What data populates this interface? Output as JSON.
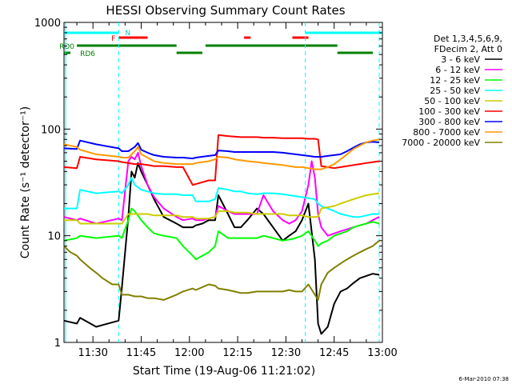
{
  "chart_data": {
    "type": "line",
    "title": "HESSI Observing Summary Count Rates",
    "xlabel": "Start Time (19-Aug-06 11:21:02)",
    "ylabel": "Count Rate (s⁻¹ detector⁻¹)",
    "x_unit": "minutes after 11:21:02",
    "xlim": [
      0,
      99
    ],
    "ylim": [
      1,
      1000
    ],
    "yscale": "log",
    "x_ticks": [
      "11:30",
      "11:45",
      "12:00",
      "12:15",
      "12:30",
      "12:45",
      "13:00"
    ],
    "x_tick_values": [
      9,
      24,
      39,
      54,
      69,
      84,
      99
    ],
    "y_ticks": [
      "1",
      "10",
      "100",
      "1000"
    ],
    "y_tick_values": [
      1,
      10,
      100,
      1000
    ],
    "legend_position": "right",
    "legend_header": [
      "Det 1,3,4,5,6,9,",
      "FDecim 2, Att 0"
    ],
    "series": [
      {
        "name": "3 - 6 keV",
        "color": "#000000",
        "x": [
          0,
          4,
          5,
          10,
          17,
          18,
          20,
          21,
          22,
          23,
          24,
          26,
          28,
          31,
          35,
          37,
          40,
          41,
          43,
          45,
          47,
          48,
          51,
          53,
          55,
          57,
          60,
          62,
          65,
          68,
          70,
          72,
          74,
          76,
          78,
          79,
          80,
          82,
          84,
          86,
          88,
          90,
          92,
          94,
          96,
          98
        ],
        "y": [
          1.6,
          1.5,
          1.7,
          1.4,
          1.6,
          3.3,
          15,
          40,
          35,
          48,
          40,
          30,
          22,
          15,
          13,
          12,
          12,
          12.5,
          13,
          14,
          14,
          24,
          16,
          12,
          12,
          14,
          18,
          16,
          12,
          9,
          10,
          11,
          14,
          20,
          6,
          1.5,
          1.2,
          1.4,
          2.3,
          3,
          3.2,
          3.6,
          4,
          4.2,
          4.4,
          4.3
        ]
      },
      {
        "name": "6 - 12 keV",
        "color": "#ff00ff",
        "x": [
          0,
          4,
          5,
          10,
          17,
          18,
          20,
          21,
          22,
          23,
          24,
          26,
          28,
          31,
          35,
          37,
          40,
          41,
          43,
          45,
          47,
          48,
          51,
          53,
          55,
          57,
          60,
          62,
          65,
          68,
          70,
          72,
          74,
          76,
          77,
          78,
          79,
          80,
          82,
          84,
          86,
          88,
          90,
          92,
          94,
          96,
          98
        ],
        "y": [
          15,
          14,
          14.5,
          13,
          14.5,
          14,
          50,
          55,
          52,
          60,
          45,
          30,
          23,
          18,
          15,
          14,
          14.5,
          14,
          14,
          14.5,
          15,
          19,
          17,
          16,
          16,
          16,
          16,
          24,
          17,
          14,
          13,
          14,
          17,
          30,
          50,
          35,
          16,
          12,
          10,
          10.5,
          11,
          11.5,
          12,
          12.5,
          13,
          14,
          15
        ]
      },
      {
        "name": "12 - 25 keV",
        "color": "#00ff00",
        "x": [
          0,
          4,
          5,
          10,
          17,
          18,
          20,
          21,
          22,
          24,
          26,
          28,
          31,
          35,
          37,
          40,
          41,
          45,
          47,
          48,
          51,
          53,
          55,
          57,
          60,
          62,
          65,
          68,
          70,
          72,
          74,
          76,
          78,
          79,
          80,
          82,
          84,
          86,
          88,
          90,
          92,
          94,
          96,
          98
        ],
        "y": [
          9,
          9.5,
          10,
          9.5,
          10,
          9.5,
          14,
          18,
          17,
          14,
          12,
          10.5,
          10,
          9.5,
          8,
          6.5,
          6,
          7,
          8,
          11,
          9.5,
          9.5,
          9.5,
          9.5,
          9.5,
          10,
          9.5,
          9,
          9.2,
          9.5,
          10,
          11,
          9,
          8,
          8.5,
          9,
          10,
          10.5,
          11,
          12,
          12.5,
          13,
          13.5,
          13
        ]
      },
      {
        "name": "25 - 50 keV",
        "color": "#00ffff",
        "x": [
          0,
          4,
          5,
          10,
          17,
          18,
          20,
          21,
          22,
          24,
          26,
          28,
          31,
          35,
          37,
          40,
          41,
          45,
          47,
          48,
          51,
          53,
          55,
          57,
          60,
          62,
          65,
          68,
          70,
          72,
          74,
          76,
          78,
          79,
          80,
          82,
          84,
          86,
          88,
          90,
          92,
          94,
          96,
          98
        ],
        "y": [
          18,
          18,
          27,
          25,
          26,
          25,
          30,
          35,
          30,
          27,
          26,
          25,
          24.5,
          24.5,
          24,
          24,
          21,
          21,
          22,
          28,
          27,
          26,
          26,
          25,
          24.5,
          25,
          25,
          24.5,
          24,
          23.5,
          23,
          22.5,
          22,
          20,
          19,
          18,
          17,
          16,
          15.5,
          15,
          15,
          15.5,
          16,
          16
        ]
      },
      {
        "name": "50 - 100 keV",
        "color": "#cccc00",
        "x": [
          0,
          4,
          5,
          10,
          17,
          18,
          20,
          22,
          24,
          26,
          28,
          31,
          35,
          37,
          40,
          41,
          45,
          47,
          48,
          51,
          53,
          55,
          57,
          60,
          62,
          65,
          68,
          70,
          72,
          74,
          76,
          78,
          79,
          80,
          84,
          86,
          88,
          90,
          92,
          94,
          96,
          98
        ],
        "y": [
          14,
          14,
          13,
          13,
          13,
          13,
          16,
          16,
          16,
          16,
          15.5,
          15.5,
          15.5,
          15,
          15,
          14.5,
          14.5,
          15,
          17,
          17,
          16.5,
          16.5,
          16.5,
          16,
          16,
          16,
          16,
          15.5,
          15.5,
          15.5,
          15,
          15,
          15,
          18,
          19,
          20,
          21,
          22,
          23,
          24,
          24.5,
          25
        ]
      },
      {
        "name": "100 - 300 keV",
        "color": "#ff0000",
        "x": [
          0,
          4,
          5,
          10,
          17,
          18,
          20,
          22,
          24,
          26,
          28,
          31,
          35,
          37,
          40,
          41,
          45,
          47,
          48,
          51,
          53,
          55,
          57,
          60,
          62,
          65,
          68,
          70,
          72,
          74,
          76,
          78,
          79,
          80,
          84,
          86,
          88,
          90,
          92,
          94,
          96,
          98
        ],
        "y": [
          44,
          43,
          55,
          52,
          50,
          49,
          48,
          47,
          47,
          46,
          45,
          45,
          44,
          44,
          30,
          30.5,
          33,
          33,
          88,
          86,
          85,
          84,
          84,
          84,
          83,
          83,
          82,
          82,
          82,
          82,
          81,
          81,
          80,
          45,
          43,
          44,
          45,
          46,
          47,
          48,
          49,
          50
        ]
      },
      {
        "name": "300 - 800 keV",
        "color": "#0000ff",
        "x": [
          0,
          4,
          5,
          10,
          17,
          18,
          20,
          22,
          23,
          24,
          26,
          28,
          31,
          35,
          37,
          40,
          41,
          45,
          47,
          48,
          51,
          53,
          55,
          57,
          60,
          62,
          65,
          68,
          70,
          72,
          74,
          76,
          78,
          80,
          82,
          84,
          86,
          88,
          90,
          92,
          94,
          96,
          98
        ],
        "y": [
          66,
          65,
          78,
          72,
          66,
          62,
          62,
          68,
          74,
          64,
          60,
          57,
          55,
          54,
          54,
          53,
          54,
          56,
          57,
          63,
          62,
          61,
          61,
          61,
          61,
          61,
          61,
          60,
          59,
          58,
          57,
          56,
          55,
          55,
          56,
          57,
          58,
          62,
          67,
          72,
          75,
          76,
          75
        ]
      },
      {
        "name": "800 - 7000 keV",
        "color": "#ff9900",
        "x": [
          0,
          4,
          5,
          10,
          17,
          18,
          20,
          22,
          23,
          24,
          26,
          28,
          31,
          35,
          37,
          40,
          41,
          45,
          47,
          48,
          51,
          53,
          55,
          57,
          60,
          62,
          65,
          68,
          70,
          72,
          74,
          76,
          78,
          80,
          82,
          84,
          86,
          88,
          90,
          92,
          94,
          96,
          98
        ],
        "y": [
          72,
          68,
          64,
          58,
          55,
          54,
          54,
          62,
          68,
          58,
          54,
          50,
          48,
          47,
          47,
          47,
          48,
          50,
          52,
          55,
          54,
          52,
          51,
          50,
          49,
          48,
          47,
          46,
          45,
          44,
          44,
          43,
          42,
          42,
          44,
          47,
          52,
          58,
          65,
          70,
          75,
          78,
          80
        ]
      },
      {
        "name": "7000 - 20000 keV",
        "color": "#808000",
        "x": [
          0,
          2,
          4,
          5,
          8,
          10,
          12,
          15,
          17,
          18,
          20,
          22,
          24,
          26,
          28,
          31,
          35,
          37,
          40,
          41,
          45,
          47,
          48,
          51,
          53,
          55,
          57,
          60,
          62,
          65,
          68,
          70,
          72,
          74,
          76,
          78,
          79,
          80,
          82,
          84,
          86,
          88,
          90,
          92,
          94,
          96,
          98
        ],
        "y": [
          8,
          7,
          6.5,
          6,
          5,
          4.5,
          4,
          3.5,
          3.5,
          2.8,
          2.8,
          2.7,
          2.7,
          2.6,
          2.6,
          2.5,
          2.8,
          3,
          3.2,
          3.1,
          3.5,
          3.4,
          3.2,
          3.1,
          3,
          2.9,
          2.9,
          3,
          3,
          3,
          3,
          3.1,
          3,
          3,
          3.5,
          2.8,
          2.5,
          3.5,
          4.5,
          5,
          5.5,
          6,
          6.5,
          7,
          7.5,
          8,
          9
        ]
      }
    ],
    "annotations": {
      "flags_labels": [
        "N",
        "F",
        "RD0",
        "RD6"
      ],
      "date_stamp": "6-Mar-2010 07:38"
    }
  }
}
